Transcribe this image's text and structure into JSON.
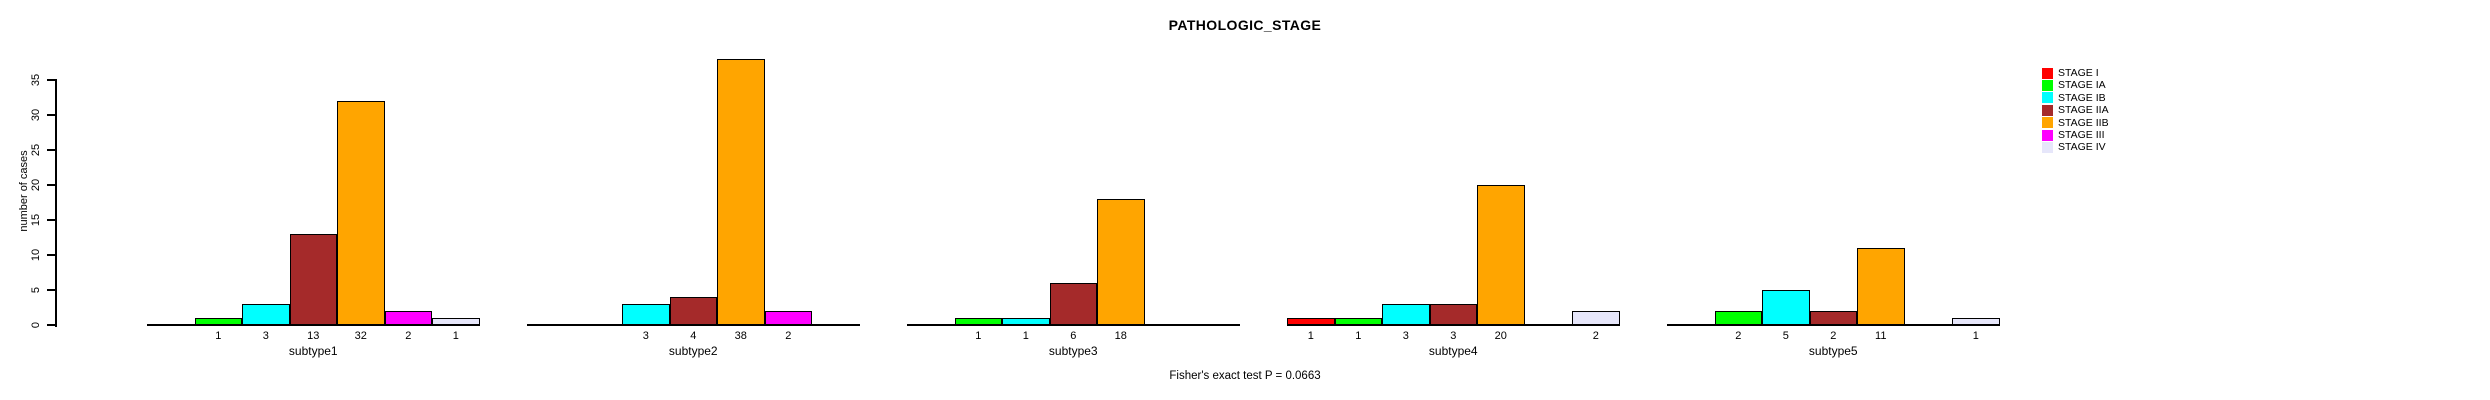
{
  "title": "PATHOLOGIC_STAGE",
  "chart_data": {
    "type": "bar",
    "title": "PATHOLOGIC_STAGE",
    "ylabel": "number of cases",
    "xlabel": "",
    "ylim": [
      0,
      35
    ],
    "yticks": [
      0,
      5,
      10,
      15,
      20,
      25,
      30,
      35
    ],
    "grid": false,
    "legend_position": "top-right",
    "bar_value_labels": true,
    "categories": [
      "subtype1",
      "subtype2",
      "subtype3",
      "subtype4",
      "subtype5"
    ],
    "series": [
      {
        "name": "STAGE I",
        "color": "#FF0000",
        "values": [
          0,
          0,
          0,
          1,
          0
        ]
      },
      {
        "name": "STAGE IA",
        "color": "#00FF00",
        "values": [
          1,
          0,
          1,
          1,
          2
        ]
      },
      {
        "name": "STAGE IB",
        "color": "#00FFFF",
        "values": [
          3,
          3,
          1,
          3,
          5
        ]
      },
      {
        "name": "STAGE IIA",
        "color": "#A52A2A",
        "values": [
          13,
          4,
          6,
          3,
          2
        ]
      },
      {
        "name": "STAGE IIB",
        "color": "#FFA500",
        "values": [
          32,
          38,
          18,
          20,
          11
        ]
      },
      {
        "name": "STAGE III",
        "color": "#FF00FF",
        "values": [
          2,
          2,
          0,
          0,
          0
        ]
      },
      {
        "name": "STAGE IV",
        "color": "#E6E6FA",
        "values": [
          1,
          0,
          0,
          2,
          1
        ]
      }
    ],
    "annotation": "Fisher's exact test P = 0.0663"
  }
}
